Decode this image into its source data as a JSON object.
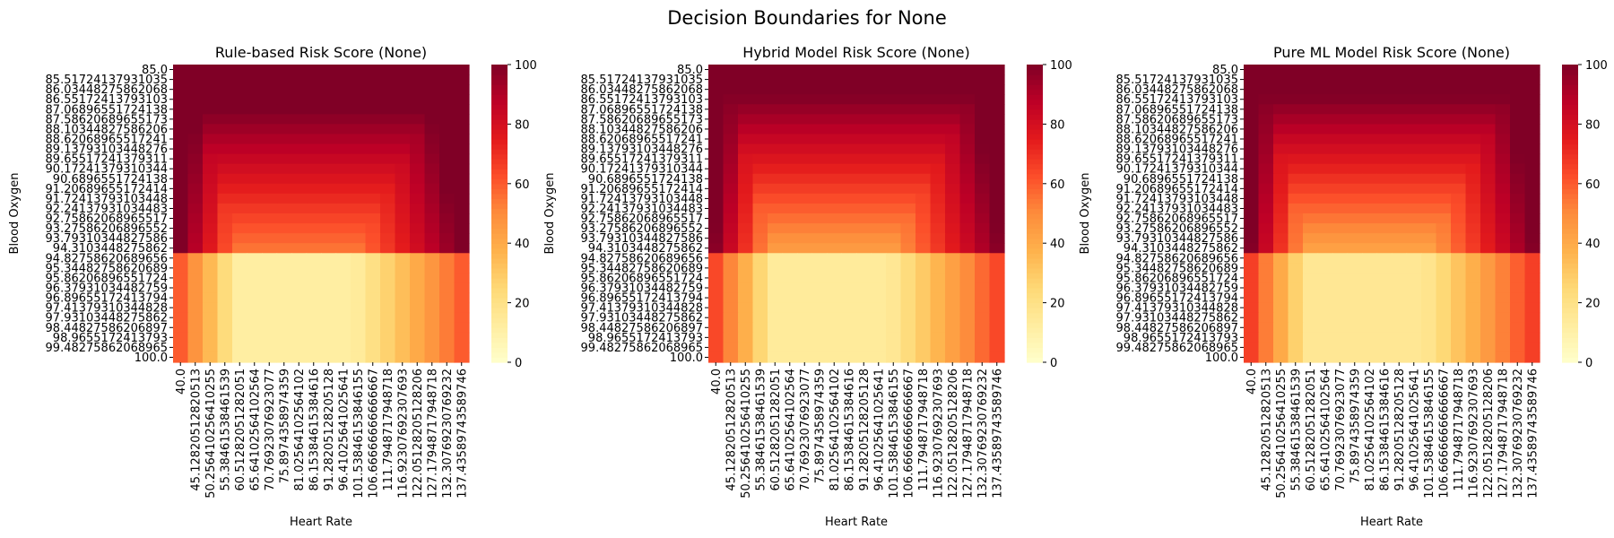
{
  "figure": {
    "suptitle": "Decision Boundaries for None"
  },
  "chart_data": [
    {
      "type": "heatmap",
      "title": "Rule-based Risk Score (None)",
      "xlabel": "Heart Rate",
      "ylabel": "Blood Oxygen",
      "colormap": "YlOrRd",
      "colorbar": {
        "min": 0,
        "max": 100,
        "ticks": [
          "0",
          "20",
          "40",
          "60",
          "80",
          "100"
        ]
      },
      "x_tick_labels": [
        "40.0",
        "45.12820512820513",
        "50.256410256410255",
        "55.38461538461539",
        "60.51282051282051",
        "65.64102564102564",
        "70.76923076923077",
        "75.8974358974359",
        "81.02564102564102",
        "86.15384615384616",
        "91.28205128205128",
        "96.41025641025641",
        "101.53846153846155",
        "106.66666666666667",
        "111.7948717948718",
        "116.92307692307693",
        "122.05128205128206",
        "127.17948717948718",
        "132.30769230769232",
        "137.43589743589746"
      ],
      "y_tick_labels": [
        "85.0",
        "85.51724137931035",
        "86.03448275862068",
        "86.55172413793103",
        "87.06896551724138",
        "87.58620689655173",
        "88.10344827586206",
        "88.62068965517241",
        "89.13793103448276",
        "89.65517241379311",
        "90.17241379310344",
        "90.6896551724138",
        "91.20689655172414",
        "91.72413793103448",
        "92.24137931034483",
        "92.75862068965517",
        "93.27586206896552",
        "93.79310344827586",
        "94.3103448275862",
        "94.82758620689656",
        "95.34482758620689",
        "95.86206896551724",
        "96.37931034482759",
        "96.89655172413794",
        "97.41379310344828",
        "97.93103448275862",
        "98.44827586206897",
        "98.9655172413793",
        "99.48275862068965",
        "100.0"
      ],
      "value_model": {
        "low_spo2_rows": 19,
        "low_spo2_base": 52,
        "low_spo2_gain": 48,
        "normal_base": 12,
        "normal_gain": 48,
        "normal_hr_range": [
          60,
          100
        ]
      }
    },
    {
      "type": "heatmap",
      "title": "Hybrid Model Risk Score (None)",
      "xlabel": "Heart Rate",
      "ylabel": "Blood Oxygen",
      "colormap": "YlOrRd",
      "colorbar": {
        "min": 0,
        "max": 100,
        "ticks": [
          "0",
          "20",
          "40",
          "60",
          "80",
          "100"
        ]
      },
      "x_tick_labels": [
        "40.0",
        "45.12820512820513",
        "50.256410256410255",
        "55.38461538461539",
        "60.51282051282051",
        "65.64102564102564",
        "70.76923076923077",
        "75.8974358974359",
        "81.02564102564102",
        "86.15384615384616",
        "91.28205128205128",
        "96.41025641025641",
        "101.53846153846155",
        "106.66666666666667",
        "111.7948717948718",
        "116.92307692307693",
        "122.05128205128206",
        "127.17948717948718",
        "132.30769230769232",
        "137.43589743589746"
      ],
      "y_tick_labels": [
        "85.0",
        "85.51724137931035",
        "86.03448275862068",
        "86.55172413793103",
        "87.06896551724138",
        "87.58620689655173",
        "88.10344827586206",
        "88.62068965517241",
        "89.13793103448276",
        "89.65517241379311",
        "90.17241379310344",
        "90.6896551724138",
        "91.20689655172414",
        "91.72413793103448",
        "92.24137931034483",
        "92.75862068965517",
        "93.27586206896552",
        "93.79310344827586",
        "94.3103448275862",
        "94.82758620689656",
        "95.34482758620689",
        "95.86206896551724",
        "96.37931034482759",
        "96.89655172413794",
        "97.41379310344828",
        "97.93103448275862",
        "98.44827586206897",
        "98.9655172413793",
        "99.48275862068965",
        "100.0"
      ],
      "value_model": {
        "low_spo2_rows": 19,
        "low_spo2_base": 42,
        "low_spo2_gain": 55,
        "normal_base": 14,
        "normal_gain": 50,
        "normal_hr_range": [
          60,
          100
        ]
      }
    },
    {
      "type": "heatmap",
      "title": "Pure ML Model Risk Score (None)",
      "xlabel": "Heart Rate",
      "ylabel": "Blood Oxygen",
      "colormap": "YlOrRd",
      "colorbar": {
        "min": 0,
        "max": 100,
        "ticks": [
          "0",
          "20",
          "40",
          "60",
          "80",
          "100"
        ]
      },
      "x_tick_labels": [
        "40.0",
        "45.12820512820513",
        "50.256410256410255",
        "55.38461538461539",
        "60.51282051282051",
        "65.64102564102564",
        "70.76923076923077",
        "75.8974358974359",
        "81.02564102564102",
        "86.15384615384616",
        "91.28205128205128",
        "96.41025641025641",
        "101.53846153846155",
        "106.66666666666667",
        "111.7948717948718",
        "116.92307692307693",
        "122.05128205128206",
        "127.17948717948718",
        "132.30769230769232",
        "137.43589743589746"
      ],
      "y_tick_labels": [
        "85.0",
        "85.51724137931035",
        "86.03448275862068",
        "86.55172413793103",
        "87.06896551724138",
        "87.58620689655173",
        "88.10344827586206",
        "88.62068965517241",
        "89.13793103448276",
        "89.65517241379311",
        "90.17241379310344",
        "90.6896551724138",
        "91.20689655172414",
        "91.72413793103448",
        "92.24137931034483",
        "92.75862068965517",
        "93.27586206896552",
        "93.79310344827586",
        "94.3103448275862",
        "94.82758620689656",
        "95.34482758620689",
        "95.86206896551724",
        "96.37931034482759",
        "96.89655172413794",
        "97.41379310344828",
        "97.93103448275862",
        "98.44827586206897",
        "98.9655172413793",
        "99.48275862068965",
        "100.0"
      ],
      "value_model": {
        "low_spo2_rows": 19,
        "low_spo2_base": 40,
        "low_spo2_gain": 58,
        "normal_base": 16,
        "normal_gain": 50,
        "normal_hr_range": [
          60,
          100
        ]
      }
    }
  ]
}
